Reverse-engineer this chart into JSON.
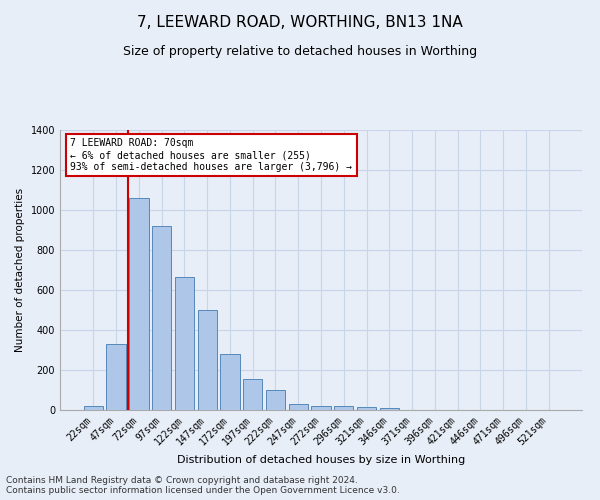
{
  "title": "7, LEEWARD ROAD, WORTHING, BN13 1NA",
  "subtitle": "Size of property relative to detached houses in Worthing",
  "xlabel": "Distribution of detached houses by size in Worthing",
  "ylabel": "Number of detached properties",
  "bar_labels": [
    "22sqm",
    "47sqm",
    "72sqm",
    "97sqm",
    "122sqm",
    "147sqm",
    "172sqm",
    "197sqm",
    "222sqm",
    "247sqm",
    "272sqm",
    "296sqm",
    "321sqm",
    "346sqm",
    "371sqm",
    "396sqm",
    "421sqm",
    "446sqm",
    "471sqm",
    "496sqm",
    "521sqm"
  ],
  "bar_values": [
    20,
    330,
    1060,
    920,
    665,
    500,
    280,
    155,
    100,
    32,
    20,
    18,
    17,
    10,
    0,
    0,
    0,
    0,
    0,
    0,
    0
  ],
  "bar_color": "#aec6e8",
  "bar_edge_color": "#5588bb",
  "red_line_x": 1.5,
  "red_line_color": "#cc0000",
  "annotation_title": "7 LEEWARD ROAD: 70sqm",
  "annotation_line1": "← 6% of detached houses are smaller (255)",
  "annotation_line2": "93% of semi-detached houses are larger (3,796) →",
  "annotation_box_facecolor": "#ffffff",
  "annotation_box_edgecolor": "#cc0000",
  "ylim": [
    0,
    1400
  ],
  "yticks": [
    0,
    200,
    400,
    600,
    800,
    1000,
    1200,
    1400
  ],
  "grid_color": "#c8d4e8",
  "background_color": "#e8eef8",
  "footer_line1": "Contains HM Land Registry data © Crown copyright and database right 2024.",
  "footer_line2": "Contains public sector information licensed under the Open Government Licence v3.0.",
  "title_fontsize": 11,
  "subtitle_fontsize": 9,
  "xlabel_fontsize": 8,
  "ylabel_fontsize": 7.5,
  "tick_fontsize": 7,
  "annot_fontsize": 7,
  "footer_fontsize": 6.5
}
